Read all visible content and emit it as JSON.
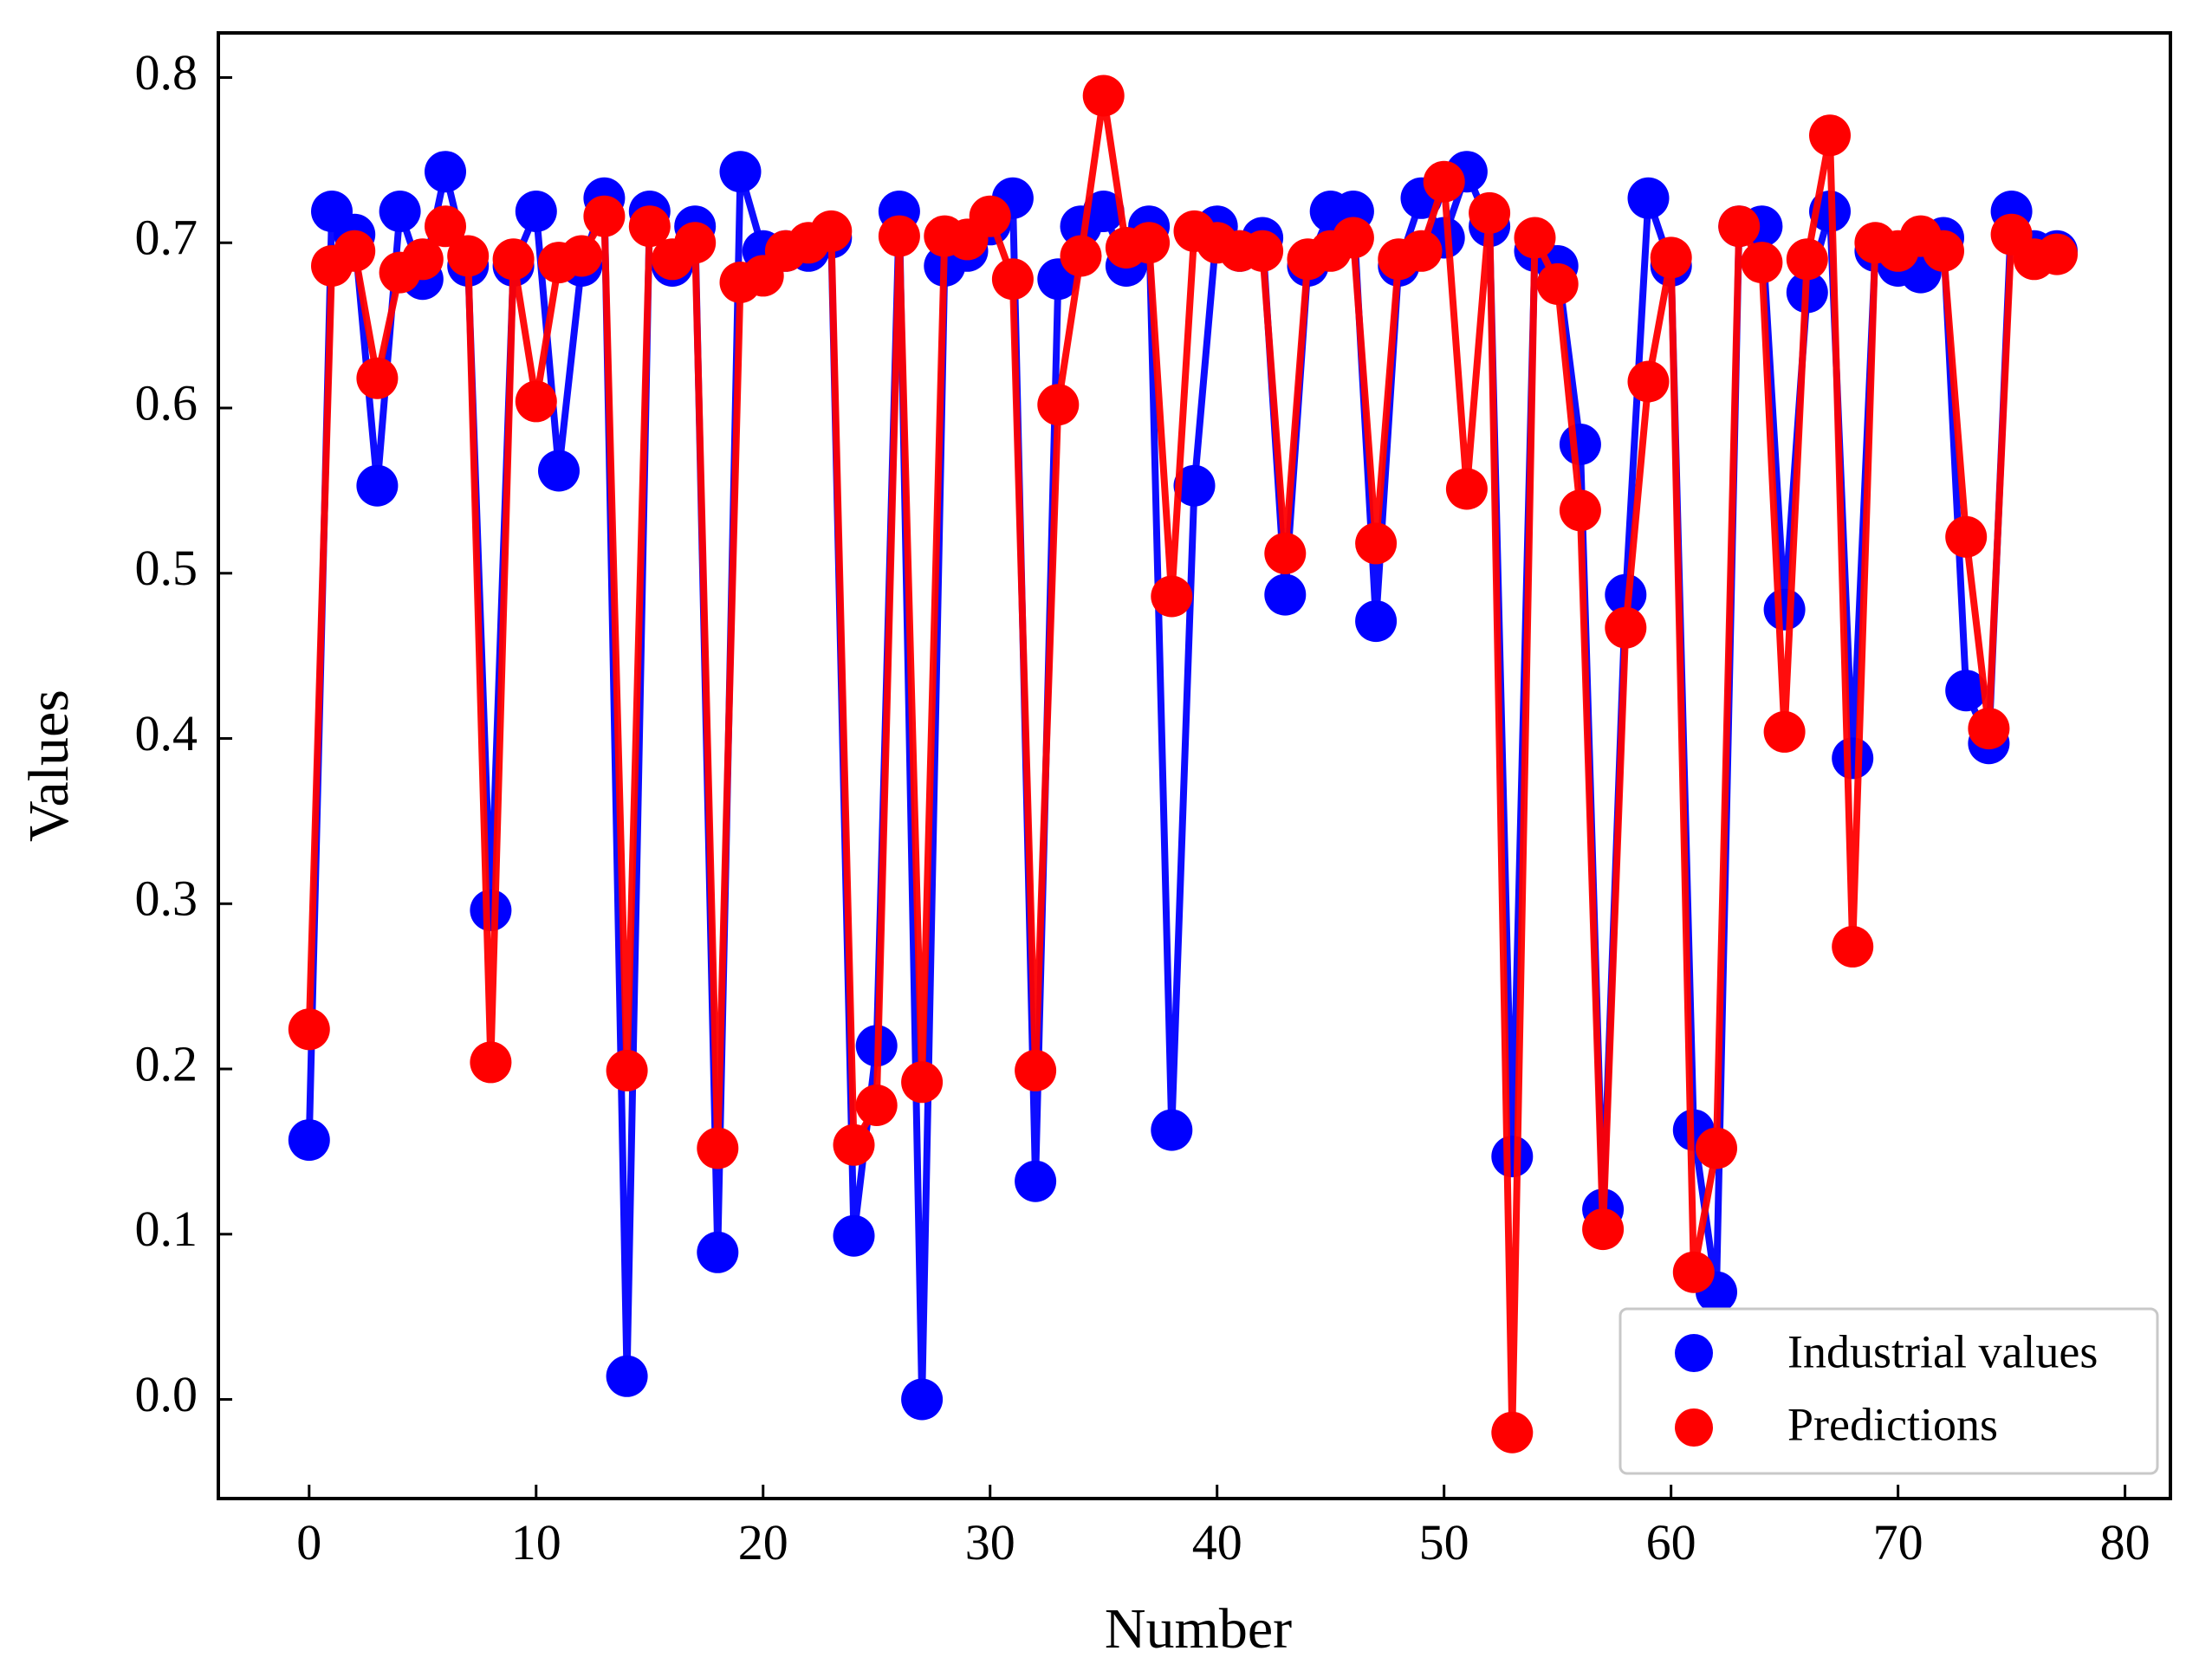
{
  "chart_data": {
    "type": "line",
    "title": "",
    "xlabel": "Number",
    "ylabel": "Values",
    "xlim": [
      -4,
      82
    ],
    "ylim": [
      -0.06,
      0.827
    ],
    "xticks": [
      0,
      10,
      20,
      30,
      40,
      50,
      60,
      70,
      80
    ],
    "xtick_labels": [
      "0",
      "10",
      "20",
      "30",
      "40",
      "50",
      "60",
      "70",
      "80"
    ],
    "yticks": [
      0.0,
      0.1,
      0.2,
      0.3,
      0.4,
      0.5,
      0.6,
      0.7,
      0.8
    ],
    "ytick_labels": [
      "0.0",
      "0.1",
      "0.2",
      "0.3",
      "0.4",
      "0.5",
      "0.6",
      "0.7",
      "0.8"
    ],
    "grid": false,
    "legend_position": "bottom-right",
    "series": [
      {
        "name": "Industrial values",
        "color": "#0000ff",
        "marker": "circle",
        "x": [
          0,
          1,
          2,
          3,
          4,
          5,
          6,
          7,
          8,
          9,
          10,
          11,
          12,
          13,
          14,
          15,
          16,
          17,
          18,
          19,
          20,
          21,
          22,
          23,
          24,
          25,
          26,
          27,
          28,
          29,
          30,
          31,
          32,
          33,
          34,
          35,
          36,
          37,
          38,
          39,
          40,
          41,
          42,
          43,
          44,
          45,
          46,
          47,
          48,
          49,
          50,
          51,
          52,
          53,
          54,
          55,
          56,
          57,
          58,
          59,
          60,
          61,
          62,
          63,
          64,
          65,
          66,
          67,
          68,
          69,
          70,
          71,
          72,
          73,
          74,
          75,
          76,
          77
        ],
        "values": [
          0.157,
          0.719,
          0.705,
          0.553,
          0.719,
          0.678,
          0.743,
          0.686,
          0.296,
          0.686,
          0.719,
          0.562,
          0.686,
          0.727,
          0.014,
          0.719,
          0.686,
          0.71,
          0.089,
          0.743,
          0.695,
          0.695,
          0.695,
          0.703,
          0.099,
          0.214,
          0.719,
          0.0,
          0.686,
          0.695,
          0.711,
          0.727,
          0.132,
          0.678,
          0.71,
          0.719,
          0.686,
          0.71,
          0.163,
          0.553,
          0.71,
          0.695,
          0.703,
          0.487,
          0.686,
          0.719,
          0.719,
          0.471,
          0.686,
          0.727,
          0.703,
          0.743,
          0.71,
          0.147,
          0.695,
          0.686,
          0.578,
          0.115,
          0.487,
          0.727,
          0.686,
          0.163,
          0.065,
          0.71,
          0.71,
          0.478,
          0.67,
          0.719,
          0.388,
          0.695,
          0.686,
          0.682,
          0.703,
          0.429,
          0.397,
          0.719,
          0.695,
          0.695
        ]
      },
      {
        "name": "Predictions",
        "color": "#ff0000",
        "marker": "circle",
        "x": [
          0,
          1,
          2,
          3,
          4,
          5,
          6,
          7,
          8,
          9,
          10,
          11,
          12,
          13,
          14,
          15,
          16,
          17,
          18,
          19,
          20,
          21,
          22,
          23,
          24,
          25,
          26,
          27,
          28,
          29,
          30,
          31,
          32,
          33,
          34,
          35,
          36,
          37,
          38,
          39,
          40,
          41,
          42,
          43,
          44,
          45,
          46,
          47,
          48,
          49,
          50,
          51,
          52,
          53,
          54,
          55,
          56,
          57,
          58,
          59,
          60,
          61,
          62,
          63,
          64,
          65,
          66,
          67,
          68,
          69,
          70,
          71,
          72,
          73,
          74,
          75,
          76,
          77
        ],
        "values": [
          0.224,
          0.686,
          0.695,
          0.618,
          0.682,
          0.69,
          0.71,
          0.692,
          0.204,
          0.69,
          0.604,
          0.688,
          0.692,
          0.716,
          0.199,
          0.71,
          0.69,
          0.7,
          0.152,
          0.676,
          0.68,
          0.695,
          0.7,
          0.707,
          0.154,
          0.178,
          0.704,
          0.192,
          0.704,
          0.702,
          0.716,
          0.678,
          0.199,
          0.602,
          0.692,
          0.789,
          0.697,
          0.7,
          0.486,
          0.707,
          0.7,
          0.695,
          0.695,
          0.512,
          0.69,
          0.695,
          0.703,
          0.518,
          0.69,
          0.695,
          0.737,
          0.551,
          0.718,
          -0.02,
          0.703,
          0.675,
          0.538,
          0.103,
          0.467,
          0.616,
          0.691,
          0.077,
          0.152,
          0.71,
          0.688,
          0.404,
          0.69,
          0.765,
          0.274,
          0.7,
          0.695,
          0.704,
          0.695,
          0.522,
          0.406,
          0.705,
          0.69,
          0.693
        ]
      }
    ]
  }
}
